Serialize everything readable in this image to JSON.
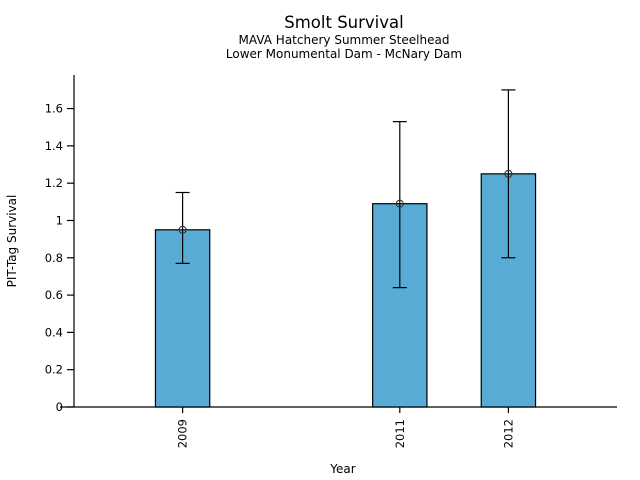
{
  "window": {
    "background_color": "#ffffff"
  },
  "chart_data": {
    "type": "bar",
    "title": "Smolt Survival",
    "subtitle_line1": "MAVA Hatchery Summer Steelhead",
    "subtitle_line2": "Lower Monumental Dam - McNary Dam",
    "xlabel": "Year",
    "ylabel": "PIT-Tag Survival",
    "categories": [
      "2009",
      "2011",
      "2012"
    ],
    "x_positions": [
      2009,
      2011,
      2012
    ],
    "values": [
      0.95,
      1.09,
      1.25
    ],
    "error_low": [
      0.77,
      0.64,
      0.8
    ],
    "error_high": [
      1.15,
      1.53,
      1.7
    ],
    "y_ticks": [
      0,
      0.2,
      0.4,
      0.6,
      0.8,
      1,
      1.2,
      1.4,
      1.6
    ],
    "ylim": [
      0,
      1.78
    ],
    "xlim": [
      2008,
      2013
    ],
    "bar_width_years": 0.5,
    "bar_fill_color": "#58ABD5",
    "bar_border_color": "#000000",
    "errorbar_color": "#000000",
    "axis_color": "#000000",
    "marker": "open-circle",
    "grid": false,
    "legend": null
  }
}
